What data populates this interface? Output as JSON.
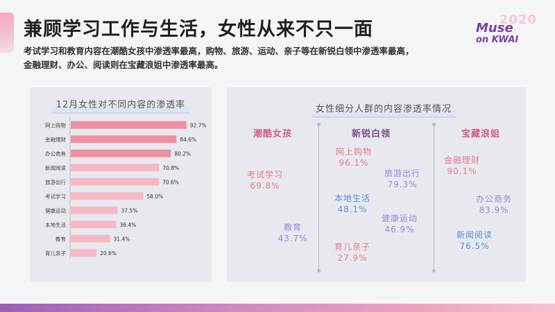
{
  "header": {
    "title": "兼顾学习工作与生活，女性从来不只一面",
    "subtitle_line1": "考试学习和教育内容在潮酷女孩中渗透率最高，购物、旅游、运动、亲子等在新锐白领中渗透率最高，",
    "subtitle_line2": "金融理财、办公、阅读则在宝藏浪姐中渗透率最高。"
  },
  "logo": {
    "year": "2020",
    "line1": "Muse",
    "line2": "on KWAI"
  },
  "colors": {
    "bar_dark": "#ef8fa3",
    "bar_light": "#f6b9c4",
    "pink": "#e8798f",
    "purple": "#9b87d9",
    "blue": "#5b8fde",
    "head_pink": "#d05f86",
    "head_purple": "#7a4c8f"
  },
  "chart_data": [
    {
      "type": "bar",
      "orientation": "horizontal",
      "title": "12月女性对不同内容的渗透率",
      "categories": [
        "网上购物",
        "金融理财",
        "办公商务",
        "新闻阅读",
        "旅游出行",
        "考试学习",
        "健康运动",
        "本地生活",
        "教育",
        "育儿亲子"
      ],
      "values": [
        92.7,
        84.6,
        80.2,
        70.8,
        70.6,
        58.0,
        37.5,
        36.4,
        31.4,
        20.6
      ],
      "value_labels": [
        "92.7%",
        "84.6%",
        "80.2%",
        "70.8%",
        "70.6%",
        "58.0%",
        "37.5%",
        "36.4%",
        "31.4%",
        "20.6%"
      ],
      "highlighted_count": 3,
      "xlim": [
        0,
        100
      ]
    },
    {
      "type": "table",
      "title": "女性细分人群的内容渗透率情况",
      "groups": [
        {
          "name": "潮酷女孩",
          "items": [
            {
              "label": "考试学习",
              "value": "69.8%",
              "color": "pink"
            },
            {
              "label": "教育",
              "value": "43.7%",
              "color": "purple"
            }
          ]
        },
        {
          "name": "新锐白领",
          "items": [
            {
              "label": "网上购物",
              "value": "96.1%",
              "color": "pink"
            },
            {
              "label": "旅游出行",
              "value": "79.3%",
              "color": "purple"
            },
            {
              "label": "本地生活",
              "value": "48.1%",
              "color": "blue"
            },
            {
              "label": "健康运动",
              "value": "46.9%",
              "color": "purple"
            },
            {
              "label": "育儿亲子",
              "value": "27.9%",
              "color": "pink"
            }
          ]
        },
        {
          "name": "宝藏浪姐",
          "items": [
            {
              "label": "金融理财",
              "value": "90.1%",
              "color": "pink"
            },
            {
              "label": "办公商务",
              "value": "83.9%",
              "color": "purple"
            },
            {
              "label": "新闻阅读",
              "value": "76.5%",
              "color": "blue"
            }
          ]
        }
      ]
    }
  ]
}
